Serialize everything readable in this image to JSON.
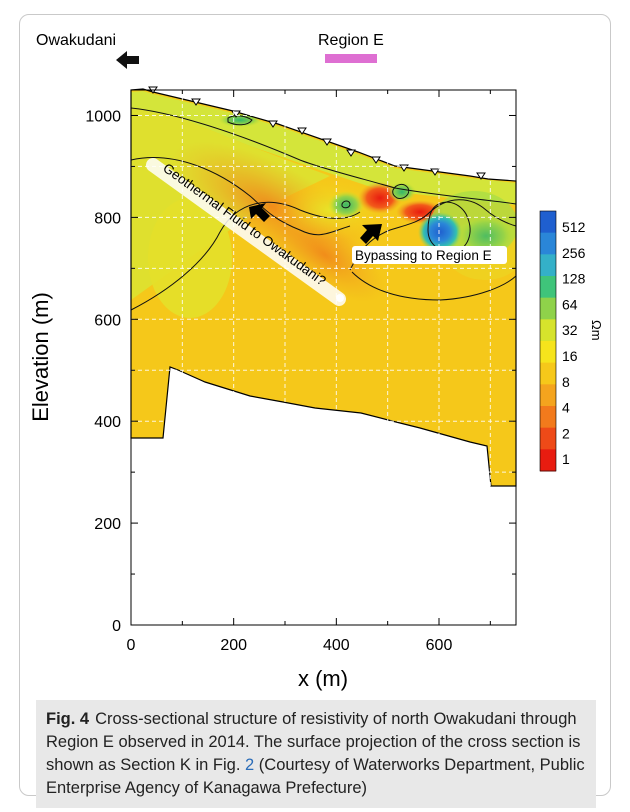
{
  "chart_data": {
    "type": "heatmap",
    "header": {
      "left_label": "Owakudani",
      "right_label": "Region E"
    },
    "xlabel": "x (m)",
    "ylabel": "Elevation (m)",
    "xlim": [
      0,
      750
    ],
    "ylim": [
      0,
      1050
    ],
    "x_ticks": [
      0,
      200,
      400,
      600
    ],
    "y_ticks": [
      0,
      200,
      400,
      600,
      800,
      1000
    ],
    "grid": true,
    "colorbar": {
      "unit": "Ωm",
      "labels": [
        "512",
        "256",
        "128",
        "64",
        "32",
        "16",
        "8",
        "4",
        "2",
        "1"
      ],
      "colors": [
        "#1f5fcf",
        "#2a86d8",
        "#34b0c8",
        "#3fc47a",
        "#8fd24a",
        "#d6e32c",
        "#f6e41c",
        "#f6c81a",
        "#f4a41e",
        "#f27a1c",
        "#ee4a18",
        "#e81c10"
      ]
    },
    "annotations": [
      "Geothermal Fluid to Owakudani?",
      "Bypassing to Region E"
    ]
  },
  "caption": {
    "label": "Fig. 4",
    "text_before_ref": "Cross-sectional structure of resistivity of north Owakudani through Region E observed in 2014. The surface projection of the cross section is shown as Section K in Fig. ",
    "ref": "2",
    "text_after_ref": " (Courtesy of Waterworks Department, Public Enterprise Agency of Kanagawa Prefecture)"
  }
}
